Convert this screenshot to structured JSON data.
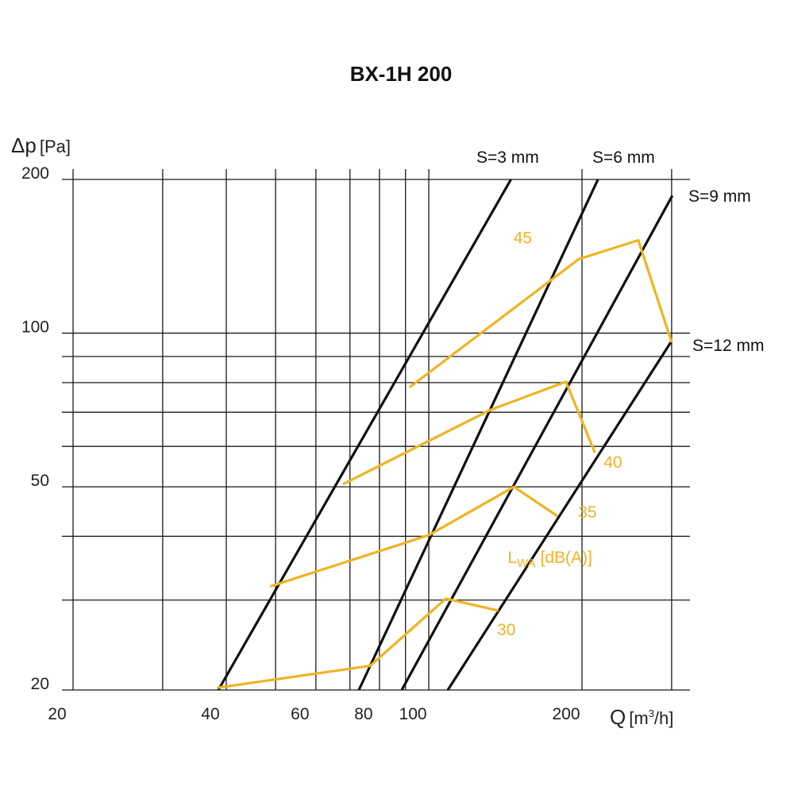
{
  "chart_data": {
    "type": "line",
    "title": "BX-1H 200",
    "ylabel": "Δp",
    "ylabel_unit": "[Pa]",
    "xlabel": "Q",
    "xlabel_unit_pre": "[m",
    "xlabel_unit_sup": "3",
    "xlabel_unit_post": "/h]",
    "x_scale": "log",
    "y_scale": "log",
    "xlim": [
      20,
      300
    ],
    "ylim": [
      20,
      200
    ],
    "x_ticks": [
      {
        "v": 20,
        "label": "20"
      },
      {
        "v": 40,
        "label": "40"
      },
      {
        "v": 60,
        "label": "60"
      },
      {
        "v": 80,
        "label": "80"
      },
      {
        "v": 100,
        "label": "100"
      },
      {
        "v": 200,
        "label": "200"
      }
    ],
    "y_ticks": [
      {
        "v": 20,
        "label": "20"
      },
      {
        "v": 50,
        "label": "50"
      },
      {
        "v": 100,
        "label": "100"
      },
      {
        "v": 200,
        "label": "200"
      }
    ],
    "x_grid": [
      20,
      30,
      40,
      50,
      60,
      70,
      80,
      90,
      100,
      200,
      300
    ],
    "y_grid": [
      20,
      30,
      40,
      50,
      60,
      70,
      80,
      90,
      100,
      200
    ],
    "grid": true,
    "colors": {
      "characteristic": "#111111",
      "sound": "#f0b323",
      "grid": "#1a1a1a"
    },
    "series": [
      {
        "name": "S=3 mm",
        "kind": "characteristic",
        "x": [
          38.6,
          145.0
        ],
        "y": [
          20,
          200
        ]
      },
      {
        "name": "S=6 mm",
        "kind": "characteristic",
        "x": [
          72.9,
          215.0
        ],
        "y": [
          20,
          200
        ]
      },
      {
        "name": "S=9 mm",
        "kind": "characteristic",
        "x": [
          88.5,
          301.0
        ],
        "y": [
          20,
          186
        ]
      },
      {
        "name": "S=12 mm",
        "kind": "characteristic",
        "x": [
          109.0,
          299.0
        ],
        "y": [
          20,
          96
        ]
      }
    ],
    "sound_lines": [
      {
        "name": "45",
        "x": [
          91.6,
          197.0,
          258.0,
          300.0
        ],
        "y": [
          78.3,
          139.6,
          152.0,
          96.0
        ]
      },
      {
        "name": "40",
        "x": [
          67.8,
          132.0,
          186.0,
          212.0
        ],
        "y": [
          50.6,
          70.7,
          80.3,
          58.3
        ]
      },
      {
        "name": "35",
        "x": [
          48.8,
          100.0,
          147.0,
          179.0
        ],
        "y": [
          31.9,
          40.2,
          50.0,
          43.8
        ]
      },
      {
        "name": "30",
        "x": [
          38.4,
          76.7,
          108.0,
          137.0
        ],
        "y": [
          20.2,
          22.3,
          30.2,
          28.6
        ]
      }
    ],
    "sound_label_positions": [
      {
        "name": "45",
        "x": 153,
        "y": 150
      },
      {
        "name": "40",
        "x": 230,
        "y": 54.5
      },
      {
        "name": "35",
        "x": 205,
        "y": 43.5
      },
      {
        "name": "30",
        "x": 142,
        "y": 25.6
      }
    ],
    "sound_unit_label": {
      "main": "L",
      "sub": "WA",
      "rest": " [dB(A)]"
    },
    "sound_unit_position": {
      "x": 173,
      "y": 35.5
    }
  }
}
